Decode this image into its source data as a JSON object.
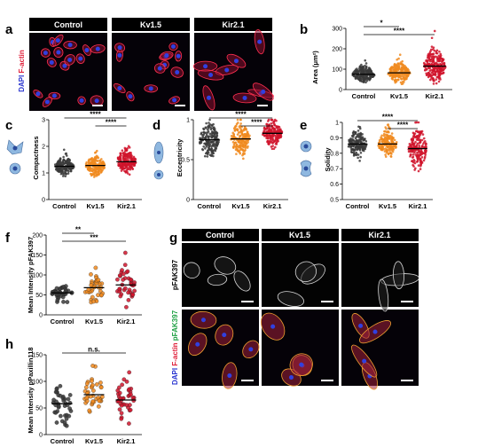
{
  "panels": {
    "a": {
      "label": "a",
      "headers": [
        "Control",
        "Kv1.5",
        "Kir2.1"
      ],
      "stain_dapi": "DAPI",
      "stain_actin": "F-actin"
    },
    "b": {
      "label": "b",
      "ylabel": "Area (μm²)",
      "sig": [
        "*",
        "****"
      ]
    },
    "c": {
      "label": "c",
      "ylabel": "Compactness",
      "sig": [
        "****",
        "****"
      ]
    },
    "d": {
      "label": "d",
      "ylabel": "Eccentricity",
      "sig": [
        "****",
        "****"
      ]
    },
    "e": {
      "label": "e",
      "ylabel": "Solidity",
      "sig": [
        "****",
        "****"
      ]
    },
    "f": {
      "label": "f",
      "ylabel": "Mean Intensity pFAK397",
      "sig": [
        "**",
        "***"
      ]
    },
    "g": {
      "label": "g",
      "headers": [
        "Control",
        "Kv1.5",
        "Kir2.1"
      ],
      "row1": "pFAK397",
      "row2_dapi": "DAPI",
      "row2_actin": "F-actin",
      "row2_fak": "pFAK397"
    },
    "h": {
      "label": "h",
      "ylabel": "Mean Intensity pPaxillin118",
      "sig": [
        "n.s."
      ]
    }
  },
  "colors": {
    "control": "#3a3a3a",
    "kv15": "#f0891e",
    "kir21": "#d0142c",
    "actin": "#e0203a",
    "dapi": "#2a35d0"
  },
  "chart_data": [
    {
      "panel": "b",
      "type": "scatter",
      "categories": [
        "Control",
        "Kv1.5",
        "Kir2.1"
      ],
      "ylabel": "Area (μm²)",
      "ylim": [
        0,
        300
      ],
      "yticks": [
        0,
        100,
        200,
        300
      ],
      "means": [
        75,
        82,
        115
      ],
      "n": [
        220,
        220,
        240
      ],
      "spread": [
        25,
        30,
        50
      ]
    },
    {
      "panel": "c",
      "type": "scatter",
      "categories": [
        "Control",
        "Kv1.5",
        "Kir2.1"
      ],
      "ylabel": "Compactness",
      "ylim": [
        0,
        3
      ],
      "yticks": [
        0,
        1,
        2,
        3
      ],
      "means": [
        1.25,
        1.28,
        1.42
      ],
      "n": [
        180,
        180,
        200
      ],
      "spread": [
        0.2,
        0.25,
        0.3
      ]
    },
    {
      "panel": "d",
      "type": "scatter",
      "categories": [
        "Control",
        "Kv1.5",
        "Kir2.1"
      ],
      "ylabel": "Eccentricity",
      "ylim": [
        0,
        1
      ],
      "yticks": [
        0,
        0.5,
        1.0
      ],
      "means": [
        0.75,
        0.76,
        0.83
      ],
      "n": [
        180,
        180,
        200
      ],
      "spread": [
        0.13,
        0.13,
        0.1
      ]
    },
    {
      "panel": "e",
      "type": "scatter",
      "categories": [
        "Control",
        "Kv1.5",
        "Kir2.1"
      ],
      "ylabel": "Solidity",
      "ylim": [
        0.5,
        1.0
      ],
      "yticks": [
        0.5,
        0.6,
        0.7,
        0.8,
        0.9,
        1.0
      ],
      "means": [
        0.86,
        0.86,
        0.83
      ],
      "n": [
        180,
        180,
        200
      ],
      "spread": [
        0.05,
        0.05,
        0.08
      ]
    },
    {
      "panel": "f",
      "type": "scatter",
      "categories": [
        "Control",
        "Kv1.5",
        "Kir2.1"
      ],
      "ylabel": "Mean Intensity pFAK397",
      "ylim": [
        0,
        200
      ],
      "yticks": [
        0,
        50,
        100,
        150,
        200
      ],
      "means": [
        55,
        68,
        75
      ],
      "n": [
        40,
        40,
        40
      ],
      "spread": [
        18,
        25,
        30
      ]
    },
    {
      "panel": "h",
      "type": "scatter",
      "categories": [
        "Control",
        "Kv1.5",
        "Kir2.1"
      ],
      "ylabel": "Mean Intensity pPaxillin118",
      "ylim": [
        0,
        150
      ],
      "yticks": [
        0,
        50,
        100,
        150
      ],
      "means": [
        58,
        75,
        65
      ],
      "n": [
        40,
        40,
        40
      ],
      "spread": [
        30,
        25,
        28
      ]
    }
  ]
}
